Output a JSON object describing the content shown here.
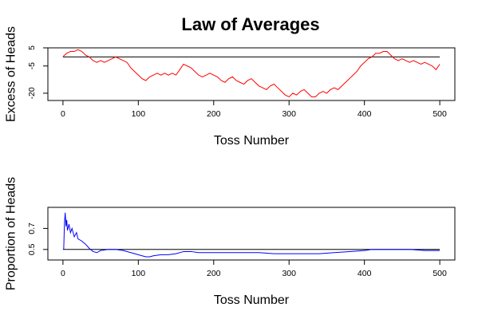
{
  "figure": {
    "title": "Law of Averages"
  },
  "chart_data": [
    {
      "type": "line",
      "title": "Law of Averages",
      "xlabel": "Toss Number",
      "ylabel": "Excess of Heads",
      "xlim": [
        0,
        500
      ],
      "ylim": [
        -24,
        5
      ],
      "xticks": [
        0,
        100,
        200,
        300,
        400,
        500
      ],
      "yticks": [
        5,
        -5,
        -20
      ],
      "reference_line": {
        "y": 0,
        "color": "#000000"
      },
      "series": [
        {
          "color": "#ff0000",
          "x": [
            0,
            2,
            5,
            10,
            15,
            20,
            25,
            30,
            35,
            40,
            45,
            50,
            55,
            60,
            65,
            70,
            75,
            80,
            85,
            90,
            95,
            100,
            105,
            110,
            115,
            120,
            125,
            130,
            135,
            140,
            145,
            150,
            155,
            160,
            165,
            170,
            175,
            180,
            185,
            190,
            195,
            200,
            205,
            210,
            215,
            220,
            225,
            230,
            235,
            240,
            245,
            250,
            255,
            260,
            265,
            270,
            275,
            280,
            285,
            290,
            295,
            300,
            305,
            310,
            315,
            320,
            325,
            330,
            335,
            340,
            345,
            350,
            355,
            360,
            365,
            370,
            375,
            380,
            385,
            390,
            395,
            400,
            405,
            410,
            415,
            420,
            425,
            430,
            435,
            440,
            445,
            450,
            455,
            460,
            465,
            470,
            475,
            480,
            485,
            490,
            495,
            500
          ],
          "y": [
            0,
            1,
            2,
            3,
            3,
            4,
            3,
            1,
            0,
            -2,
            -3,
            -2,
            -3,
            -2,
            -1,
            0,
            -1,
            -2,
            -3,
            -6,
            -8,
            -10,
            -12,
            -13,
            -11,
            -10,
            -9,
            -10,
            -9,
            -10,
            -9,
            -10,
            -7,
            -4,
            -5,
            -6,
            -8,
            -10,
            -11,
            -10,
            -9,
            -10,
            -11,
            -13,
            -14,
            -12,
            -11,
            -13,
            -14,
            -15,
            -13,
            -12,
            -14,
            -16,
            -17,
            -18,
            -16,
            -15,
            -17,
            -19,
            -21,
            -22,
            -20,
            -21,
            -19,
            -18,
            -20,
            -22,
            -22,
            -20,
            -19,
            -20,
            -18,
            -17,
            -18,
            -16,
            -14,
            -12,
            -10,
            -8,
            -5,
            -3,
            -1,
            0,
            2,
            2,
            3,
            3,
            1,
            -1,
            -2,
            -1,
            -2,
            -3,
            -2,
            -3,
            -4,
            -3,
            -4,
            -5,
            -7,
            -4
          ]
        }
      ]
    },
    {
      "type": "line",
      "xlabel": "Toss Number",
      "ylabel": "Proportion of Heads",
      "xlim": [
        0,
        500
      ],
      "ylim": [
        0.4,
        0.9
      ],
      "xticks": [
        0,
        100,
        200,
        300,
        400,
        500
      ],
      "yticks": [
        0.5,
        0.7
      ],
      "reference_line": {
        "y": 0.5,
        "color": "#000000"
      },
      "series": [
        {
          "color": "#0000ff",
          "x": [
            1,
            2,
            3,
            4,
            5,
            6,
            8,
            10,
            12,
            15,
            18,
            20,
            25,
            30,
            35,
            40,
            45,
            50,
            60,
            70,
            80,
            90,
            100,
            105,
            110,
            115,
            120,
            130,
            140,
            150,
            160,
            170,
            180,
            190,
            200,
            220,
            240,
            260,
            280,
            300,
            320,
            340,
            360,
            380,
            400,
            410,
            420,
            430,
            440,
            460,
            480,
            500
          ],
          "y": [
            0.5,
            0.75,
            0.85,
            0.72,
            0.78,
            0.68,
            0.74,
            0.66,
            0.7,
            0.62,
            0.66,
            0.6,
            0.58,
            0.55,
            0.51,
            0.48,
            0.47,
            0.49,
            0.5,
            0.5,
            0.49,
            0.47,
            0.45,
            0.44,
            0.43,
            0.43,
            0.44,
            0.45,
            0.45,
            0.46,
            0.48,
            0.48,
            0.47,
            0.47,
            0.47,
            0.47,
            0.47,
            0.47,
            0.46,
            0.46,
            0.46,
            0.46,
            0.47,
            0.48,
            0.49,
            0.5,
            0.5,
            0.5,
            0.5,
            0.5,
            0.49,
            0.49
          ]
        }
      ]
    }
  ]
}
